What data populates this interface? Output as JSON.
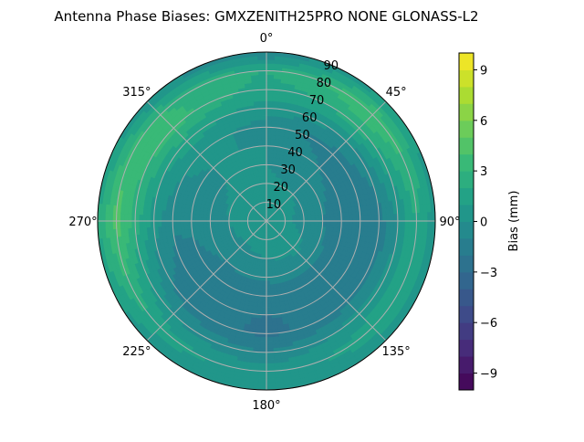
{
  "chart_data": {
    "type": "heatmap",
    "subtype": "polar-filled-contour",
    "title": "Antenna Phase Biases: GMXZENITH25PRO  NONE GLONASS-L2",
    "angular_tick_labels": [
      "0°",
      "45°",
      "90°",
      "135°",
      "180°",
      "225°",
      "270°",
      "315°"
    ],
    "radial_tick_labels": [
      "10",
      "20",
      "30",
      "40",
      "50",
      "60",
      "70",
      "80",
      "90"
    ],
    "radial_range": [
      0,
      90
    ],
    "azimuth_direction": "clockwise",
    "zero_location": "top",
    "grid": true,
    "colormap": "viridis",
    "colorbar": {
      "label": "Bias (mm)",
      "range": [
        -10,
        10
      ],
      "level_step": 1,
      "tick_labels": [
        "−9",
        "−6",
        "−3",
        "0",
        "3",
        "6",
        "9"
      ],
      "ticks": [
        -9,
        -6,
        -3,
        0,
        3,
        6,
        9
      ]
    },
    "azimuths": [
      0,
      45,
      90,
      135,
      180,
      225,
      270,
      315
    ],
    "zeniths": [
      0,
      10,
      20,
      30,
      40,
      50,
      60,
      70,
      80,
      90
    ],
    "values": [
      [
        0.3,
        0.3,
        0.3,
        0.3,
        0.3,
        0.3,
        0.3,
        0.3
      ],
      [
        0.3,
        0.3,
        0.2,
        0.3,
        0.3,
        0.3,
        0.3,
        0.3
      ],
      [
        0.2,
        0.0,
        -0.3,
        0.3,
        0.0,
        -0.2,
        0.0,
        0.2
      ],
      [
        0.0,
        -0.5,
        -1.0,
        -0.5,
        -0.8,
        -1.0,
        -0.5,
        0.0
      ],
      [
        0.0,
        -1.0,
        -1.8,
        -1.5,
        -1.5,
        -1.5,
        -0.8,
        0.0
      ],
      [
        -0.5,
        -1.5,
        -2.0,
        -1.8,
        -2.0,
        -1.8,
        -0.8,
        0.5
      ],
      [
        0.5,
        0.0,
        -1.5,
        -1.5,
        -2.2,
        -1.5,
        0.5,
        1.5
      ],
      [
        1.5,
        2.5,
        0.0,
        0.5,
        -1.0,
        0.0,
        2.5,
        3.5
      ],
      [
        2.0,
        4.0,
        2.0,
        1.5,
        0.5,
        1.5,
        4.5,
        3.0
      ],
      [
        -1.0,
        1.0,
        0.5,
        0.5,
        0.5,
        0.5,
        2.0,
        0.0
      ]
    ]
  }
}
